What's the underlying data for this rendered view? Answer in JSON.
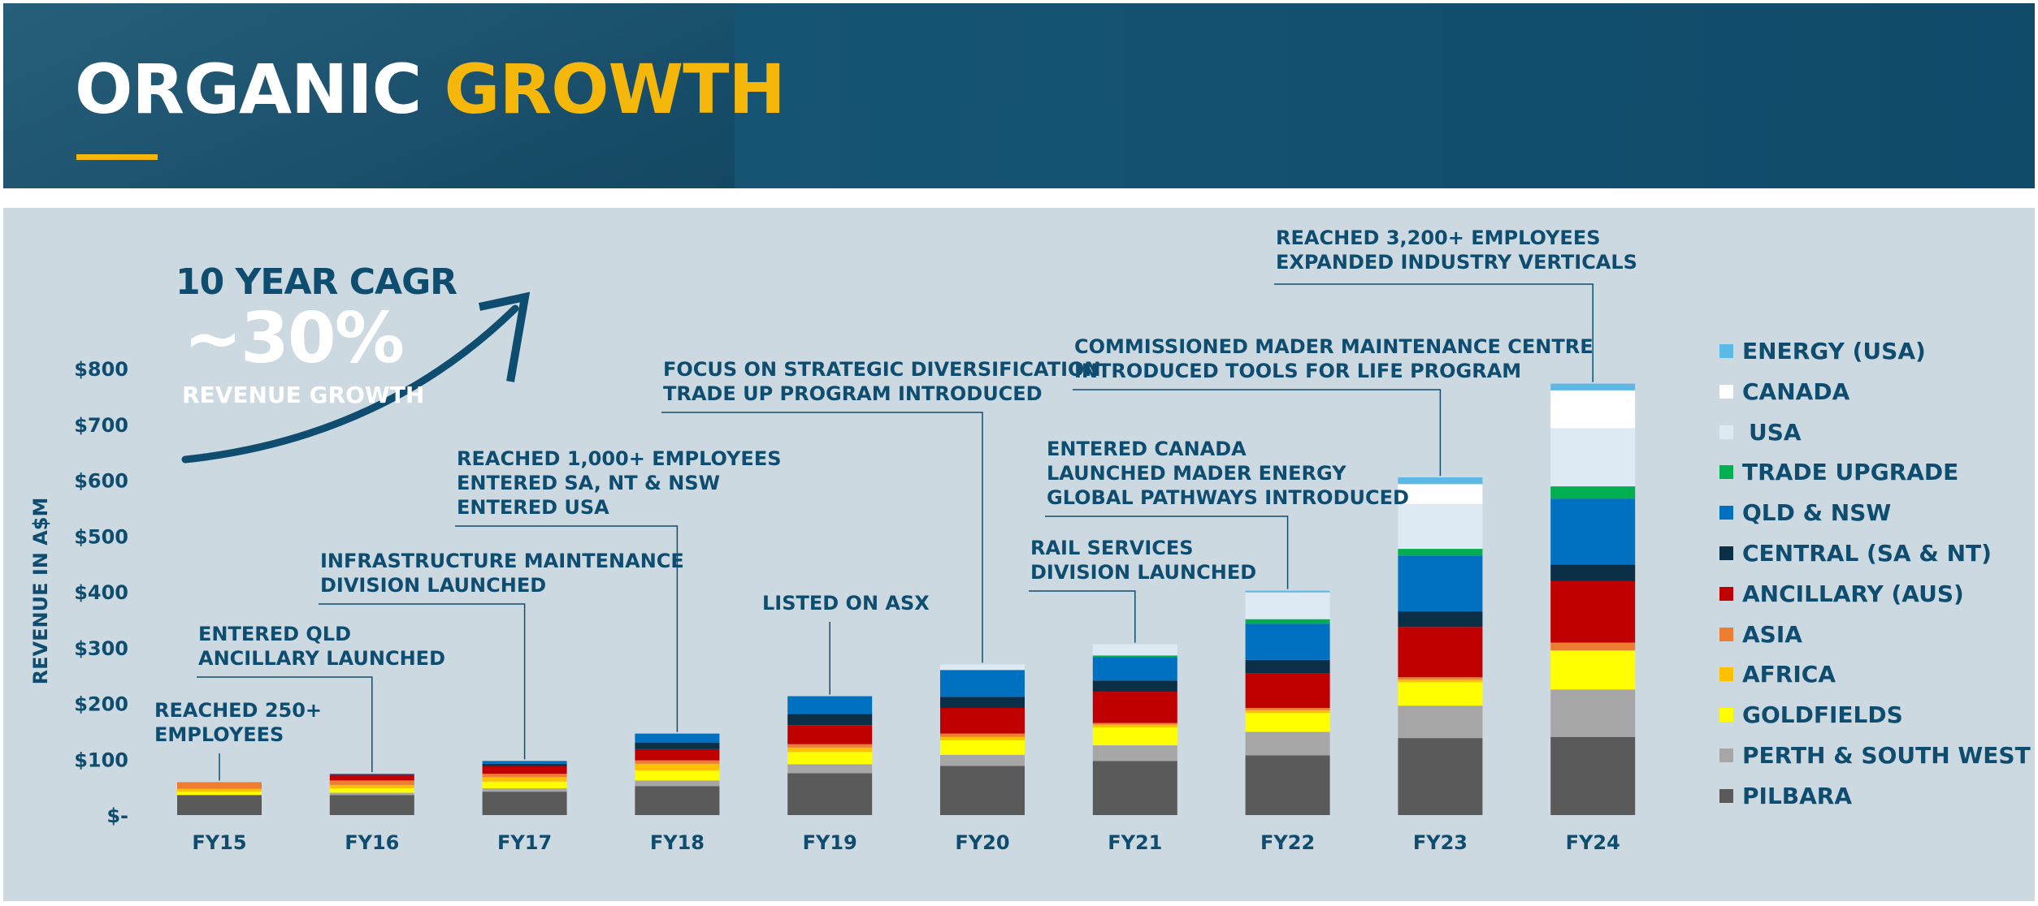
{
  "header": {
    "title_white": "ORGANIC",
    "title_yellow": "GROWTH",
    "bg_color": "#155373",
    "accent_color": "#f5b70a"
  },
  "cagr": {
    "line1": "10 YEAR CAGR",
    "line2": "~30%",
    "line3": "REVENUE GROWTH"
  },
  "chart_data": {
    "type": "bar",
    "stacked": true,
    "ylabel": "REVENUE IN A$M",
    "xlabel": "",
    "ylim": [
      0,
      800
    ],
    "yticks": [
      0,
      100,
      200,
      300,
      400,
      500,
      600,
      700,
      800
    ],
    "ytick_labels": [
      "$-",
      "$100",
      "$200",
      "$300",
      "$400",
      "$500",
      "$600",
      "$700",
      "$800"
    ],
    "categories": [
      "FY15",
      "FY16",
      "FY17",
      "FY18",
      "FY19",
      "FY20",
      "FY21",
      "FY22",
      "FY23",
      "FY24"
    ],
    "series": [
      {
        "name": "PILBARA",
        "color": "#5a5a5a",
        "values": [
          36,
          36,
          42,
          52,
          75,
          88,
          97,
          107,
          138,
          140
        ]
      },
      {
        "name": "PERTH & SOUTH WEST",
        "color": "#a6a6a6",
        "values": [
          0,
          4,
          6,
          10,
          16,
          20,
          28,
          42,
          58,
          85
        ]
      },
      {
        "name": "GOLDFIELDS",
        "color": "#ffff00",
        "values": [
          6,
          8,
          12,
          18,
          22,
          26,
          32,
          34,
          42,
          70
        ]
      },
      {
        "name": "AFRICA",
        "color": "#ffc000",
        "values": [
          5,
          6,
          8,
          12,
          8,
          6,
          5,
          5,
          5,
          0
        ]
      },
      {
        "name": "ASIA",
        "color": "#ed7d31",
        "values": [
          12,
          8,
          6,
          6,
          6,
          6,
          3,
          4,
          4,
          14
        ]
      },
      {
        "name": "ANCILLARY (AUS)",
        "color": "#c00000",
        "values": [
          0,
          10,
          14,
          20,
          34,
          46,
          56,
          62,
          90,
          110
        ]
      },
      {
        "name": "CENTRAL (SA & NT)",
        "color": "#0a2f47",
        "values": [
          0,
          0,
          4,
          12,
          20,
          20,
          20,
          24,
          28,
          30
        ]
      },
      {
        "name": "QLD & NSW",
        "color": "#0070c0",
        "values": [
          0,
          2,
          5,
          16,
          32,
          48,
          42,
          65,
          100,
          118
        ]
      },
      {
        "name": "TRADE UPGRADE",
        "color": "#00b050",
        "values": [
          0,
          0,
          0,
          0,
          0,
          0,
          3,
          8,
          12,
          22
        ]
      },
      {
        "name": "USA",
        "color": "#dde9f3",
        "values": [
          0,
          0,
          0,
          0,
          0,
          10,
          20,
          48,
          80,
          104
        ]
      },
      {
        "name": "CANADA",
        "color": "#ffffff",
        "values": [
          0,
          0,
          0,
          0,
          0,
          0,
          0,
          0,
          36,
          68
        ]
      },
      {
        "name": "ENERGY (USA)",
        "color": "#5cb8e4",
        "values": [
          0,
          0,
          0,
          0,
          0,
          0,
          0,
          3,
          12,
          12
        ]
      }
    ],
    "legend_order": [
      "ENERGY (USA)",
      "CANADA",
      "USA",
      "TRADE UPGRADE",
      "QLD & NSW",
      "CENTRAL (SA & NT)",
      "ANCILLARY (AUS)",
      "ASIA",
      "AFRICA",
      "GOLDFIELDS",
      "PERTH & SOUTH WEST",
      "PILBARA"
    ],
    "annotations": [
      {
        "category": "FY15",
        "lines": [
          "REACHED 250+",
          "EMPLOYEES"
        ]
      },
      {
        "category": "FY16",
        "lines": [
          "ENTERED QLD",
          "ANCILLARY  LAUNCHED"
        ]
      },
      {
        "category": "FY17",
        "lines": [
          "INFRASTRUCTURE MAINTENANCE",
          "DIVISION LAUNCHED"
        ]
      },
      {
        "category": "FY18",
        "lines": [
          "REACHED 1,000+ EMPLOYEES",
          "ENTERED SA, NT & NSW",
          "ENTERED USA"
        ]
      },
      {
        "category": "FY19",
        "lines": [
          "LISTED ON ASX"
        ]
      },
      {
        "category": "FY20",
        "lines": [
          "FOCUS ON STRATEGIC DIVERSIFICATION",
          "TRADE UP PROGRAM INTRODUCED"
        ]
      },
      {
        "category": "FY21",
        "lines": [
          "RAIL SERVICES",
          "DIVISION LAUNCHED"
        ]
      },
      {
        "category": "FY22",
        "lines": [
          "ENTERED CANADA",
          "LAUNCHED MADER ENERGY",
          "GLOBAL PATHWAYS INTRODUCED"
        ]
      },
      {
        "category": "FY23",
        "lines": [
          "COMMISSIONED MADER MAINTENANCE CENTRE",
          "INTRODUCED TOOLS FOR LIFE PROGRAM"
        ]
      },
      {
        "category": "FY24",
        "lines": [
          "REACHED 3,200+ EMPLOYEES",
          "EXPANDED INDUSTRY VERTICALS"
        ]
      }
    ]
  }
}
